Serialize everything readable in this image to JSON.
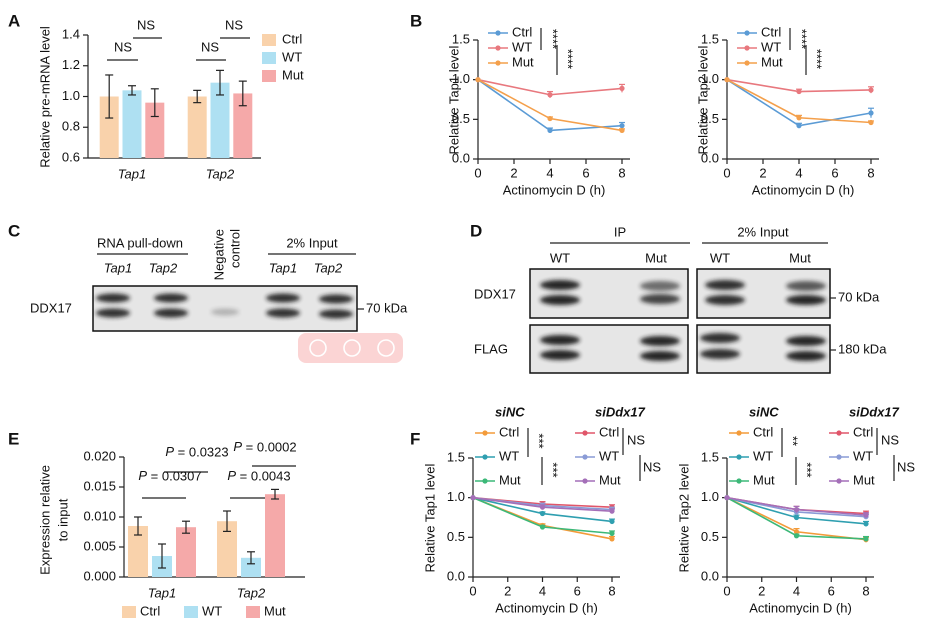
{
  "panels": [
    "A",
    "B",
    "C",
    "D",
    "E",
    "F"
  ],
  "blot_c": {
    "headers": [
      "RNA pull-down",
      "2% Input"
    ],
    "negative_control": [
      "Negative",
      "control"
    ],
    "lanes": [
      "Tap1",
      "Tap2",
      "Tap1",
      "Tap2"
    ],
    "protein": "DDX17",
    "marker": "70 kDa"
  },
  "blot_d": {
    "headers": [
      "IP",
      "2% Input"
    ],
    "lanes": [
      "WT",
      "Mut",
      "WT",
      "Mut"
    ],
    "proteins": [
      "DDX17",
      "FLAG"
    ],
    "markers": [
      "70 kDa",
      "180 kDa"
    ]
  },
  "chart_data": [
    {
      "type": "bar",
      "ylabel": "Relative pre-mRNA level",
      "categories": [
        "Tap1",
        "Tap2"
      ],
      "series": [
        {
          "name": "Ctrl",
          "color": "#f9d2ab",
          "values": [
            1.0,
            1.0
          ],
          "errors": [
            0.14,
            0.04
          ]
        },
        {
          "name": "WT",
          "color": "#aee0f2",
          "values": [
            1.04,
            1.09
          ],
          "errors": [
            0.03,
            0.08
          ]
        },
        {
          "name": "Mut",
          "color": "#f5a9a9",
          "values": [
            0.96,
            1.02
          ],
          "errors": [
            0.09,
            0.08
          ]
        }
      ],
      "ylim": [
        0.6,
        1.4
      ],
      "yticks": [
        0.6,
        0.8,
        {
          "value": 1,
          "label": "1.0"
        },
        1.2,
        1.4
      ],
      "legend": "right",
      "annotations": [
        "NS",
        "NS",
        "NS",
        "NS"
      ]
    },
    {
      "type": "line",
      "xlabel": "Actinomycin D (h)",
      "ylabel": "Relative Tap1 level",
      "x": [
        0,
        4,
        8
      ],
      "series": [
        {
          "name": "Ctrl",
          "color": "#5b9bd5",
          "values": [
            1.0,
            0.36,
            0.42
          ],
          "errors": [
            0,
            0.03,
            0.04
          ]
        },
        {
          "name": "WT",
          "color": "#e8787e",
          "values": [
            1.0,
            0.81,
            0.89
          ],
          "errors": [
            0,
            0.04,
            0.05
          ]
        },
        {
          "name": "Mut",
          "color": "#f4a04c",
          "values": [
            1.0,
            0.51,
            0.36
          ],
          "errors": [
            0,
            0.02,
            0.02
          ]
        }
      ],
      "xlim": [
        0,
        8
      ],
      "xticks": [
        0,
        2,
        4,
        6,
        8
      ],
      "ylim": [
        0,
        1.5
      ],
      "yticks": [
        {
          "value": 0,
          "label": "0.0"
        },
        0.5,
        {
          "value": 1,
          "label": "1.0"
        },
        1.5
      ],
      "legend": "top-left",
      "annotations": [
        "****",
        "****"
      ]
    },
    {
      "type": "line",
      "xlabel": "Actinomycin D (h)",
      "ylabel": "Relative Tap2 level",
      "x": [
        0,
        4,
        8
      ],
      "series": [
        {
          "name": "Ctrl",
          "color": "#5b9bd5",
          "values": [
            1.0,
            0.42,
            0.58
          ],
          "errors": [
            0,
            0.03,
            0.06
          ]
        },
        {
          "name": "WT",
          "color": "#e8787e",
          "values": [
            1.0,
            0.85,
            0.87
          ],
          "errors": [
            0,
            0.03,
            0.04
          ]
        },
        {
          "name": "Mut",
          "color": "#f4a04c",
          "values": [
            1.0,
            0.52,
            0.46
          ],
          "errors": [
            0,
            0.03,
            0.02
          ]
        }
      ],
      "xlim": [
        0,
        8
      ],
      "xticks": [
        0,
        2,
        4,
        6,
        8
      ],
      "ylim": [
        0,
        1.5
      ],
      "yticks": [
        {
          "value": 0,
          "label": "0.0"
        },
        0.5,
        {
          "value": 1,
          "label": "1.0"
        },
        1.5
      ],
      "legend": "top-left",
      "annotations": [
        "****",
        "****"
      ]
    },
    {
      "type": "bar",
      "ylabel": [
        "Expression relative",
        "to input"
      ],
      "categories": [
        "Tap1",
        "Tap2"
      ],
      "series": [
        {
          "name": "Ctrl",
          "color": "#f9d2ab",
          "values": [
            0.0085,
            0.0093
          ],
          "errors": [
            0.0015,
            0.0017
          ]
        },
        {
          "name": "WT",
          "color": "#aee0f2",
          "values": [
            0.0035,
            0.0032
          ],
          "errors": [
            0.002,
            0.001
          ]
        },
        {
          "name": "Mut",
          "color": "#f5a9a9",
          "values": [
            0.0083,
            0.0138
          ],
          "errors": [
            0.001,
            0.0008
          ]
        }
      ],
      "ylim": [
        0,
        0.02
      ],
      "yticks": [
        {
          "value": 0,
          "label": "0.000"
        },
        {
          "value": 0.005,
          "label": "0.005"
        },
        {
          "value": 0.01,
          "label": "0.010"
        },
        {
          "value": 0.015,
          "label": "0.015"
        },
        {
          "value": 0.02,
          "label": "0.020"
        }
      ],
      "legend": "bottom",
      "annotations": [
        "P = 0.0307",
        "P = 0.0323",
        "P = 0.0043",
        "P = 0.0002"
      ]
    },
    {
      "type": "line",
      "xlabel": "Actinomycin D (h)",
      "ylabel": "Relative Tap1 level",
      "x": [
        0,
        4,
        8
      ],
      "series": [
        {
          "group": "siNC",
          "name": "Ctrl",
          "color": "#f39b3a",
          "values": [
            1.0,
            0.65,
            0.48
          ],
          "errors": [
            0,
            0.02,
            0.03
          ]
        },
        {
          "group": "siNC",
          "name": "WT",
          "color": "#2f9fb0",
          "values": [
            1.0,
            0.8,
            0.7
          ],
          "errors": [
            0,
            0.02,
            0.03
          ]
        },
        {
          "group": "siNC",
          "name": "Mut",
          "color": "#3cb878",
          "values": [
            1.0,
            0.63,
            0.55
          ],
          "errors": [
            0,
            0.02,
            0.03
          ]
        },
        {
          "group": "siDdx17",
          "name": "Ctrl",
          "color": "#e0566a",
          "values": [
            1.0,
            0.92,
            0.88
          ],
          "errors": [
            0,
            0.03,
            0.03
          ]
        },
        {
          "group": "siDdx17",
          "name": "WT",
          "color": "#8a9bd6",
          "values": [
            1.0,
            0.9,
            0.85
          ],
          "errors": [
            0,
            0.03,
            0.03
          ]
        },
        {
          "group": "siDdx17",
          "name": "Mut",
          "color": "#a46fb8",
          "values": [
            1.0,
            0.88,
            0.83
          ],
          "errors": [
            0,
            0.03,
            0.03
          ]
        }
      ],
      "xlim": [
        0,
        8
      ],
      "xticks": [
        0,
        2,
        4,
        6,
        8
      ],
      "ylim": [
        0,
        1.5
      ],
      "yticks": [
        {
          "value": 0,
          "label": "0.0"
        },
        0.5,
        {
          "value": 1,
          "label": "1.0"
        },
        1.5
      ],
      "legend": "top",
      "annotations": [
        "***",
        "***",
        "NS",
        "NS"
      ]
    },
    {
      "type": "line",
      "xlabel": "Actinomycin D (h)",
      "ylabel": "Relative Tap2 level",
      "x": [
        0,
        4,
        8
      ],
      "series": [
        {
          "group": "siNC",
          "name": "Ctrl",
          "color": "#f39b3a",
          "values": [
            1.0,
            0.57,
            0.47
          ],
          "errors": [
            0,
            0.04,
            0.03
          ]
        },
        {
          "group": "siNC",
          "name": "WT",
          "color": "#2f9fb0",
          "values": [
            1.0,
            0.75,
            0.67
          ],
          "errors": [
            0,
            0.03,
            0.03
          ]
        },
        {
          "group": "siNC",
          "name": "Mut",
          "color": "#3cb878",
          "values": [
            1.0,
            0.52,
            0.48
          ],
          "errors": [
            0,
            0.02,
            0.03
          ]
        },
        {
          "group": "siDdx17",
          "name": "Ctrl",
          "color": "#e0566a",
          "values": [
            1.0,
            0.85,
            0.8
          ],
          "errors": [
            0,
            0.04,
            0.03
          ]
        },
        {
          "group": "siDdx17",
          "name": "WT",
          "color": "#8a9bd6",
          "values": [
            1.0,
            0.82,
            0.76
          ],
          "errors": [
            0,
            0.04,
            0.03
          ]
        },
        {
          "group": "siDdx17",
          "name": "Mut",
          "color": "#a46fb8",
          "values": [
            1.0,
            0.85,
            0.78
          ],
          "errors": [
            0,
            0.04,
            0.03
          ]
        }
      ],
      "xlim": [
        0,
        8
      ],
      "xticks": [
        0,
        2,
        4,
        6,
        8
      ],
      "ylim": [
        0,
        1.5
      ],
      "yticks": [
        {
          "value": 0,
          "label": "0.0"
        },
        0.5,
        {
          "value": 1,
          "label": "1.0"
        },
        1.5
      ],
      "legend": "top",
      "annotations": [
        "**",
        "***",
        "NS",
        "NS"
      ]
    }
  ]
}
